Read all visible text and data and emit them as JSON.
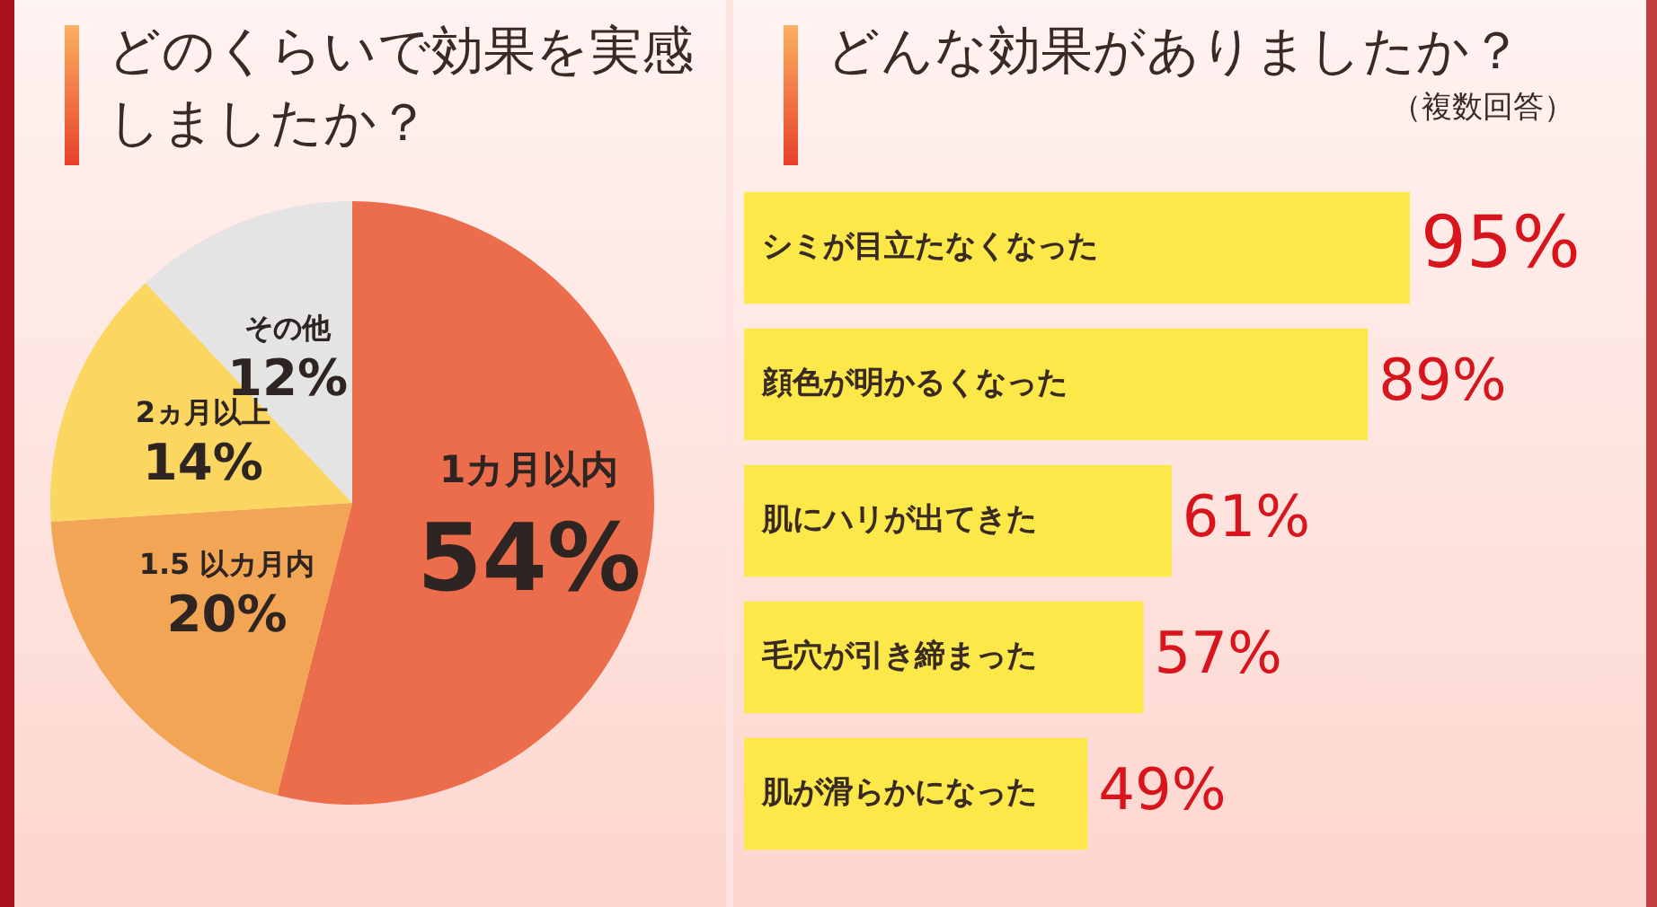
{
  "chart_data": [
    {
      "type": "pie",
      "title": "どのくらいで効果を実感しましたか？",
      "categories": [
        "1カ月以内",
        "1.5 以カ月内",
        "2ヵ月以上",
        "その他"
      ],
      "values": [
        54,
        20,
        14,
        12
      ],
      "colors": [
        "#ec6d4b",
        "#f2a655",
        "#fbd660",
        "#e4e4e4"
      ],
      "value_labels": [
        "54%",
        "20%",
        "14%",
        "12%"
      ],
      "legend": false
    },
    {
      "type": "bar",
      "orientation": "horizontal",
      "title": "どんな効果がありましたか？",
      "subtitle": "（複数回答）",
      "categories": [
        "シミが目立たなくなった",
        "顔色が明かるくなった",
        "肌にハリが出てきた",
        "毛穴が引き締まった",
        "肌が滑らかになった"
      ],
      "values": [
        95,
        89,
        61,
        57,
        49
      ],
      "color": "#fde84a",
      "value_labels": [
        "95%",
        "89%",
        "61%",
        "57%",
        "49%"
      ],
      "tick_labels": false,
      "legend": false
    }
  ]
}
